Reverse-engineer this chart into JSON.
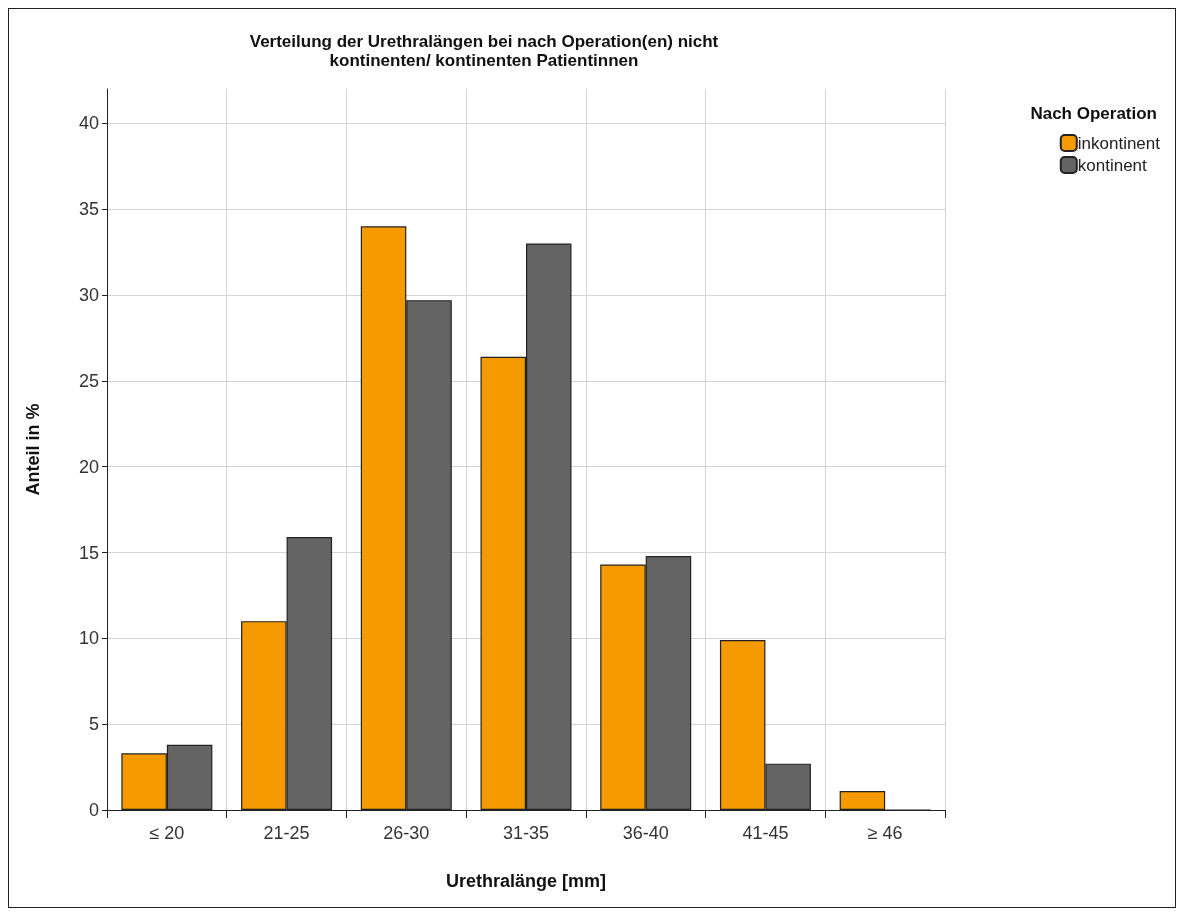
{
  "chart_data": {
    "type": "bar",
    "title": "Verteilung der Urethralängen bei nach Operation(en) nicht\nkontinenten/ kontinenten Patientinnen",
    "xlabel": "Urethralänge [mm]",
    "ylabel": "Anteil in %",
    "legend_title": "Nach Operation",
    "categories": [
      "≤ 20",
      "21-25",
      "26-30",
      "31-35",
      "36-40",
      "41-45",
      "≥ 46"
    ],
    "series": [
      {
        "name": "inkontinent",
        "color": "#f59a00",
        "values": [
          3.3,
          11.0,
          34.0,
          26.4,
          14.3,
          9.9,
          1.1
        ]
      },
      {
        "name": "kontinent",
        "color": "#646464",
        "values": [
          3.8,
          15.9,
          29.7,
          33.0,
          14.8,
          2.7,
          0
        ]
      }
    ],
    "ylim": [
      0,
      42
    ],
    "yticks": [
      0,
      5,
      10,
      15,
      20,
      25,
      30,
      35,
      40
    ],
    "grid": true,
    "legend": "right"
  }
}
